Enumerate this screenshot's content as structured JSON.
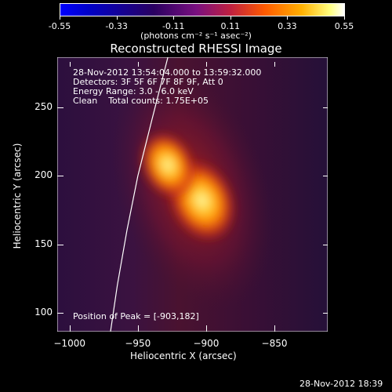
{
  "colorbar": {
    "ticks": [
      "-0.55",
      "-0.33",
      "-0.11",
      "0.11",
      "0.33",
      "0.55"
    ],
    "units": "(photons cm⁻² s⁻¹ asec⁻²)"
  },
  "title": "Reconstructed RHESSI Image",
  "info": {
    "line1": "28-Nov-2012 13:54:04.000 to 13:59:32.000",
    "line2": "Detectors: 3F 5F 6F 7F 8F 9F, Att 0",
    "line3": "Energy Range: 3.0 - 6.0 keV",
    "line4": "Clean    Total counts: 1.75E+05",
    "peak": "Position of Peak = [-903,182]"
  },
  "timestamp": "28-Nov-2012 18:39",
  "chart_data": {
    "type": "heatmap",
    "title": "Reconstructed RHESSI Image",
    "xlabel": "Heliocentric X (arcsec)",
    "ylabel": "Heliocentric Y (arcsec)",
    "xlim": [
      -1009,
      -811
    ],
    "ylim": [
      86,
      287
    ],
    "xticks": [
      -1000,
      -950,
      -900,
      -850
    ],
    "xtick_labels": [
      "−1000",
      "−950",
      "−900",
      "−850"
    ],
    "yticks": [
      100,
      150,
      200,
      250
    ],
    "ytick_labels": [
      "100",
      "150",
      "200",
      "250"
    ],
    "colorbar_range": [
      -0.55,
      0.55
    ],
    "peak": [
      -903,
      182
    ],
    "sources": [
      {
        "x": -903,
        "y": 182,
        "value": 0.55
      },
      {
        "x": -928,
        "y": 208,
        "value": 0.45
      }
    ],
    "limb_curve": [
      [
        -970,
        86
      ],
      [
        -965,
        120
      ],
      [
        -958,
        160
      ],
      [
        -950,
        200
      ],
      [
        -940,
        240
      ],
      [
        -928,
        287
      ]
    ]
  }
}
